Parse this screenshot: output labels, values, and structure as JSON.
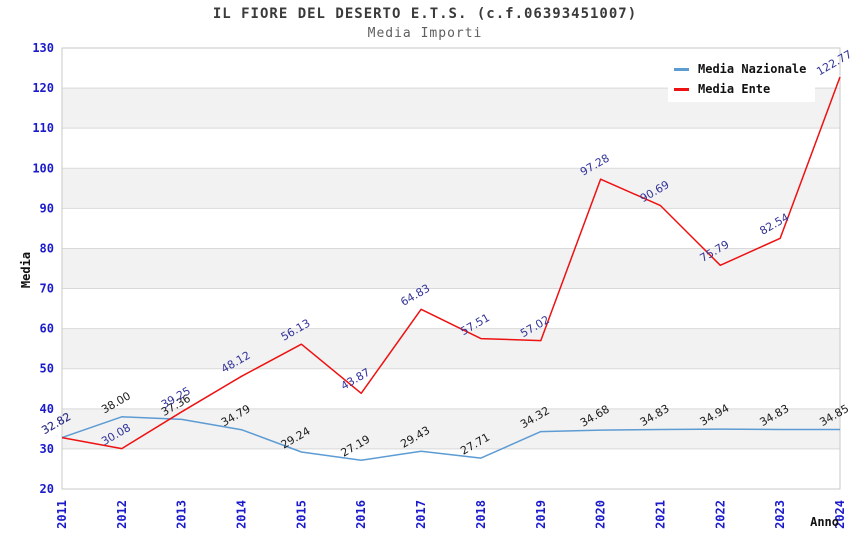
{
  "header": {
    "title": "IL FIORE DEL DESERTO E.T.S. (c.f.06393451007)",
    "subtitle": "Media Importi"
  },
  "colors": {
    "axis_tick": "#1b1bcc",
    "grid_line": "#d9d9d9",
    "band_fill": "#f2f2f2",
    "plot_border": "#c9c9c9",
    "axis_title": "#111111",
    "background": "#ffffff"
  },
  "chart_data": {
    "type": "line",
    "title": "IL FIORE DEL DESERTO E.T.S. (c.f.06393451007)",
    "subtitle": "Media Importi",
    "xlabel": "Anno",
    "ylabel": "Media",
    "ylim": [
      20,
      130
    ],
    "y_ticks": [
      20,
      30,
      40,
      50,
      60,
      70,
      80,
      90,
      100,
      110,
      120,
      130
    ],
    "grid": "horizontal-with-alternating-bands",
    "legend_position": "top-right-inside",
    "categories": [
      "2011",
      "2012",
      "2013",
      "2014",
      "2015",
      "2016",
      "2017",
      "2018",
      "2019",
      "2020",
      "2021",
      "2022",
      "2023",
      "2024"
    ],
    "series": [
      {
        "name": "Media Nazionale",
        "color": "#5d9bd3",
        "label_color": "#1a1a1a",
        "values": [
          32.82,
          38.0,
          37.36,
          34.79,
          29.24,
          27.19,
          29.43,
          27.71,
          34.32,
          34.68,
          34.83,
          34.94,
          34.83,
          34.85
        ]
      },
      {
        "name": "Media Ente",
        "color": "#ee1111",
        "label_color": "#333399",
        "values": [
          32.82,
          30.08,
          39.25,
          48.12,
          56.13,
          43.87,
          64.83,
          57.51,
          57.02,
          97.28,
          90.69,
          75.79,
          82.54,
          122.77
        ]
      }
    ]
  }
}
